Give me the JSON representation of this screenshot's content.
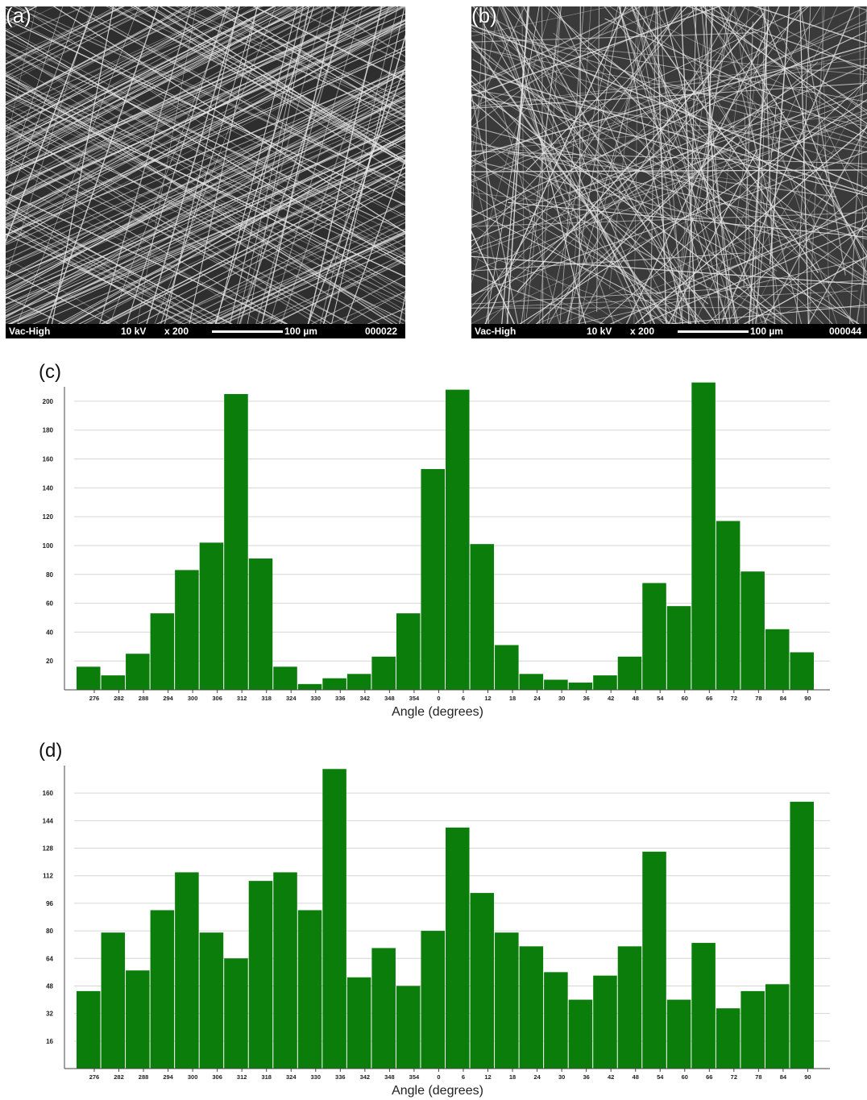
{
  "sem_images": [
    {
      "panel_label": "(a)",
      "mode": "Vac-High",
      "voltage": "10 kV",
      "magnification": "x 200",
      "scale": "100 µm",
      "image_id": "000022"
    },
    {
      "panel_label": "(b)",
      "mode": "Vac-High",
      "voltage": "10 kV",
      "magnification": "x 200",
      "scale": "100 µm",
      "image_id": "000044"
    }
  ],
  "colors": {
    "bar": "#0a7d0a",
    "grid": "#d6d6d6",
    "axis": "#444444"
  },
  "chart_data": [
    {
      "panel_label": "(c)",
      "type": "bar",
      "xlabel": "Angle (degrees)",
      "ylabel": "",
      "title": "",
      "ylim": [
        0,
        210
      ],
      "yticks": [
        20,
        40,
        60,
        80,
        100,
        120,
        140,
        160,
        180,
        200
      ],
      "categories": [
        "276",
        "282",
        "288",
        "294",
        "300",
        "306",
        "312",
        "318",
        "324",
        "330",
        "336",
        "342",
        "348",
        "354",
        "0",
        "6",
        "12",
        "18",
        "24",
        "30",
        "36",
        "42",
        "48",
        "54",
        "60",
        "66",
        "72",
        "78",
        "84",
        "90"
      ],
      "values": [
        16,
        10,
        25,
        53,
        83,
        102,
        205,
        91,
        16,
        4,
        8,
        11,
        23,
        53,
        153,
        208,
        101,
        31,
        11,
        7,
        5,
        10,
        23,
        74,
        58,
        213,
        117,
        82,
        42,
        26
      ],
      "grid": true
    },
    {
      "panel_label": "(d)",
      "type": "bar",
      "xlabel": "Angle (degrees)",
      "ylabel": "",
      "title": "",
      "ylim": [
        0,
        176
      ],
      "yticks": [
        16,
        32,
        48,
        64,
        80,
        96,
        112,
        128,
        144,
        160
      ],
      "categories": [
        "276",
        "282",
        "288",
        "294",
        "300",
        "306",
        "312",
        "318",
        "324",
        "330",
        "336",
        "342",
        "348",
        "354",
        "0",
        "6",
        "12",
        "18",
        "24",
        "30",
        "36",
        "42",
        "48",
        "54",
        "60",
        "66",
        "72",
        "78",
        "84",
        "90"
      ],
      "values": [
        45,
        79,
        57,
        92,
        114,
        79,
        64,
        109,
        114,
        92,
        174,
        53,
        70,
        48,
        80,
        140,
        102,
        79,
        71,
        56,
        40,
        54,
        71,
        126,
        40,
        73,
        35,
        45,
        49,
        155
      ],
      "grid": true
    }
  ]
}
